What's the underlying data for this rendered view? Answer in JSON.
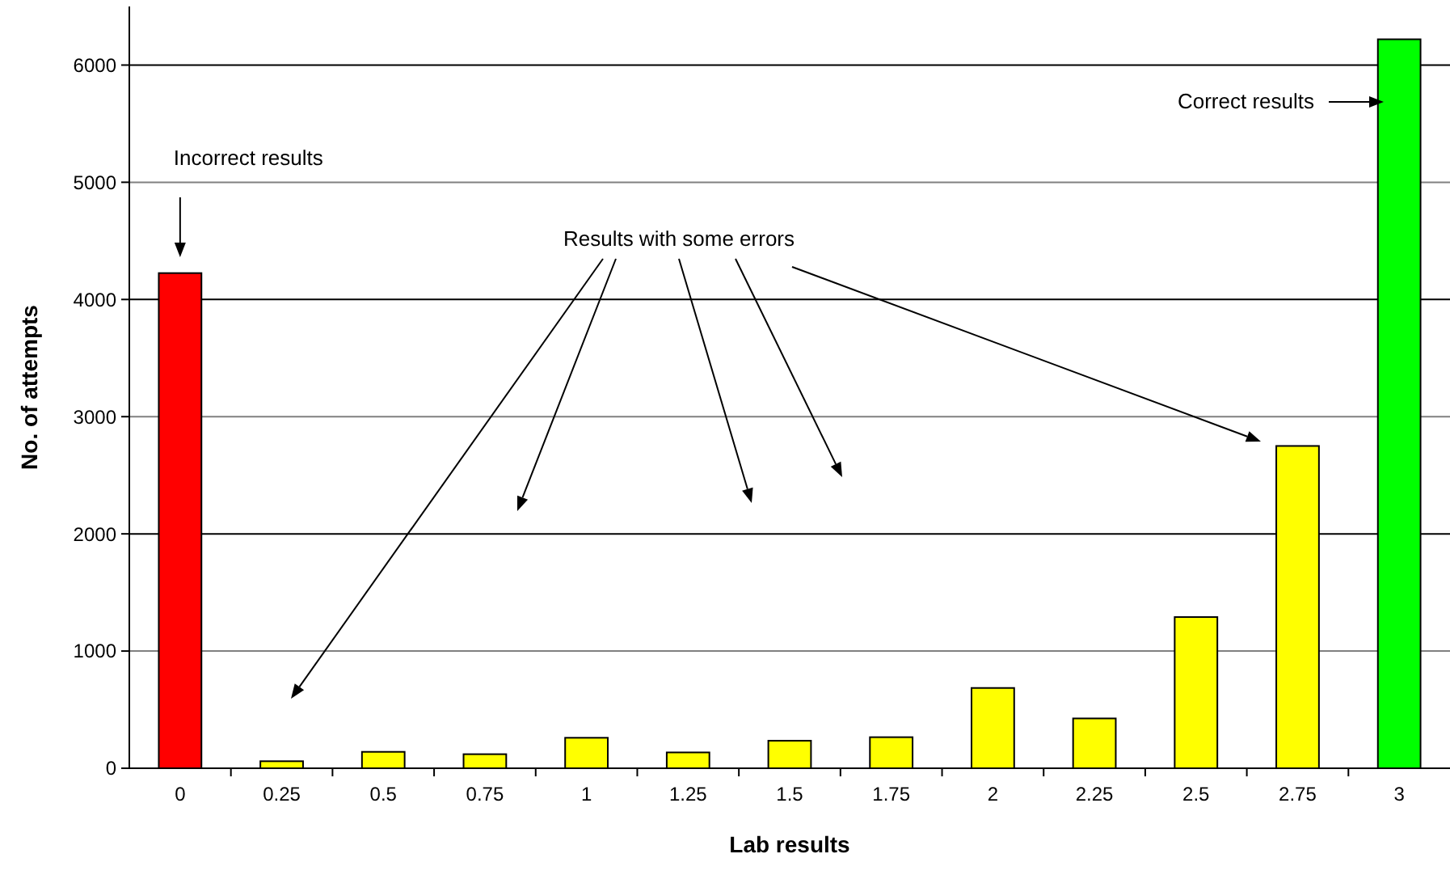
{
  "chart_data": {
    "type": "bar",
    "xlabel": "Lab results",
    "ylabel": "No. of attempts",
    "categories": [
      "0",
      "0.25",
      "0.5",
      "0.75",
      "1",
      "1.25",
      "1.5",
      "1.75",
      "2",
      "2.25",
      "2.5",
      "2.75",
      "3"
    ],
    "values": [
      4225,
      60,
      140,
      120,
      260,
      135,
      235,
      265,
      685,
      425,
      1290,
      2750,
      6220
    ],
    "colors": [
      "#ff0000",
      "#ffff00",
      "#ffff00",
      "#ffff00",
      "#ffff00",
      "#ffff00",
      "#ffff00",
      "#ffff00",
      "#ffff00",
      "#ffff00",
      "#ffff00",
      "#ffff00",
      "#00ff00"
    ],
    "ylim": [
      0,
      6500
    ],
    "yticks": [
      0,
      1000,
      2000,
      3000,
      4000,
      5000,
      6000
    ],
    "grid": "y",
    "annotations": [
      "Incorrect results",
      "Results with some errors",
      "Correct results"
    ]
  }
}
